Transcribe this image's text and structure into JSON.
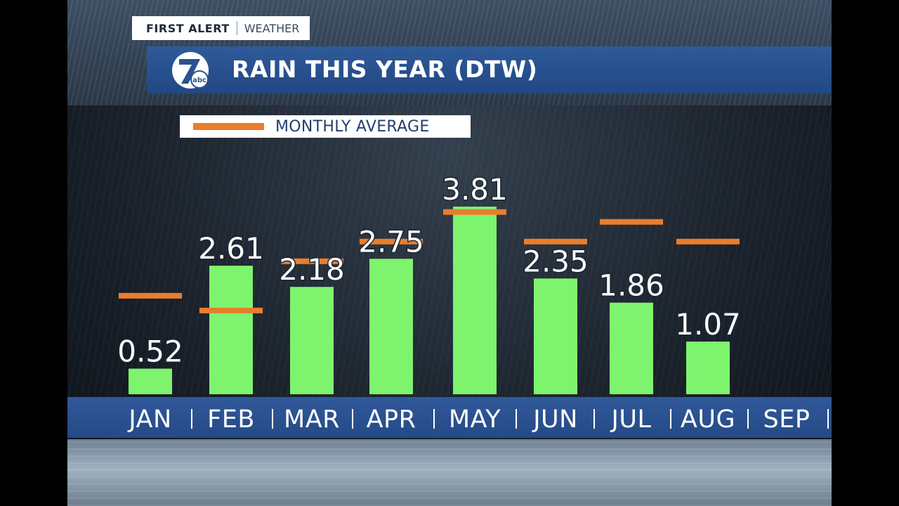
{
  "header": {
    "brand_first": "FIRST ALERT",
    "brand_second": "WEATHER",
    "title": "RAIN THIS YEAR (DTW)",
    "logo_text": "abc"
  },
  "legend": {
    "label": "MONTHLY AVERAGE",
    "color": "#e97d2c"
  },
  "colors": {
    "bar": "#7ef36e",
    "average": "#e97d2c",
    "title_bar": "#2a5290"
  },
  "chart_data": {
    "type": "bar",
    "title": "RAIN THIS YEAR (DTW)",
    "categories": [
      "JAN",
      "FEB",
      "MAR",
      "APR",
      "MAY",
      "JUN",
      "JUL",
      "AUG",
      "SEP"
    ],
    "series": [
      {
        "values": [
          0.52,
          2.61,
          2.18,
          2.75,
          3.81,
          2.35,
          1.86,
          1.07,
          null
        ]
      },
      {
        "name": "MONTHLY AVERAGE",
        "values": [
          2.0,
          1.7,
          2.7,
          3.1,
          3.7,
          3.1,
          3.5,
          3.1,
          null
        ]
      }
    ],
    "value_labels": [
      "0.52",
      "2.61",
      "2.18",
      "2.75",
      "3.81",
      "2.35",
      "1.86",
      "1.07"
    ],
    "ylim": [
      0,
      4.3
    ],
    "legend_position": "top-left",
    "grid": false
  }
}
